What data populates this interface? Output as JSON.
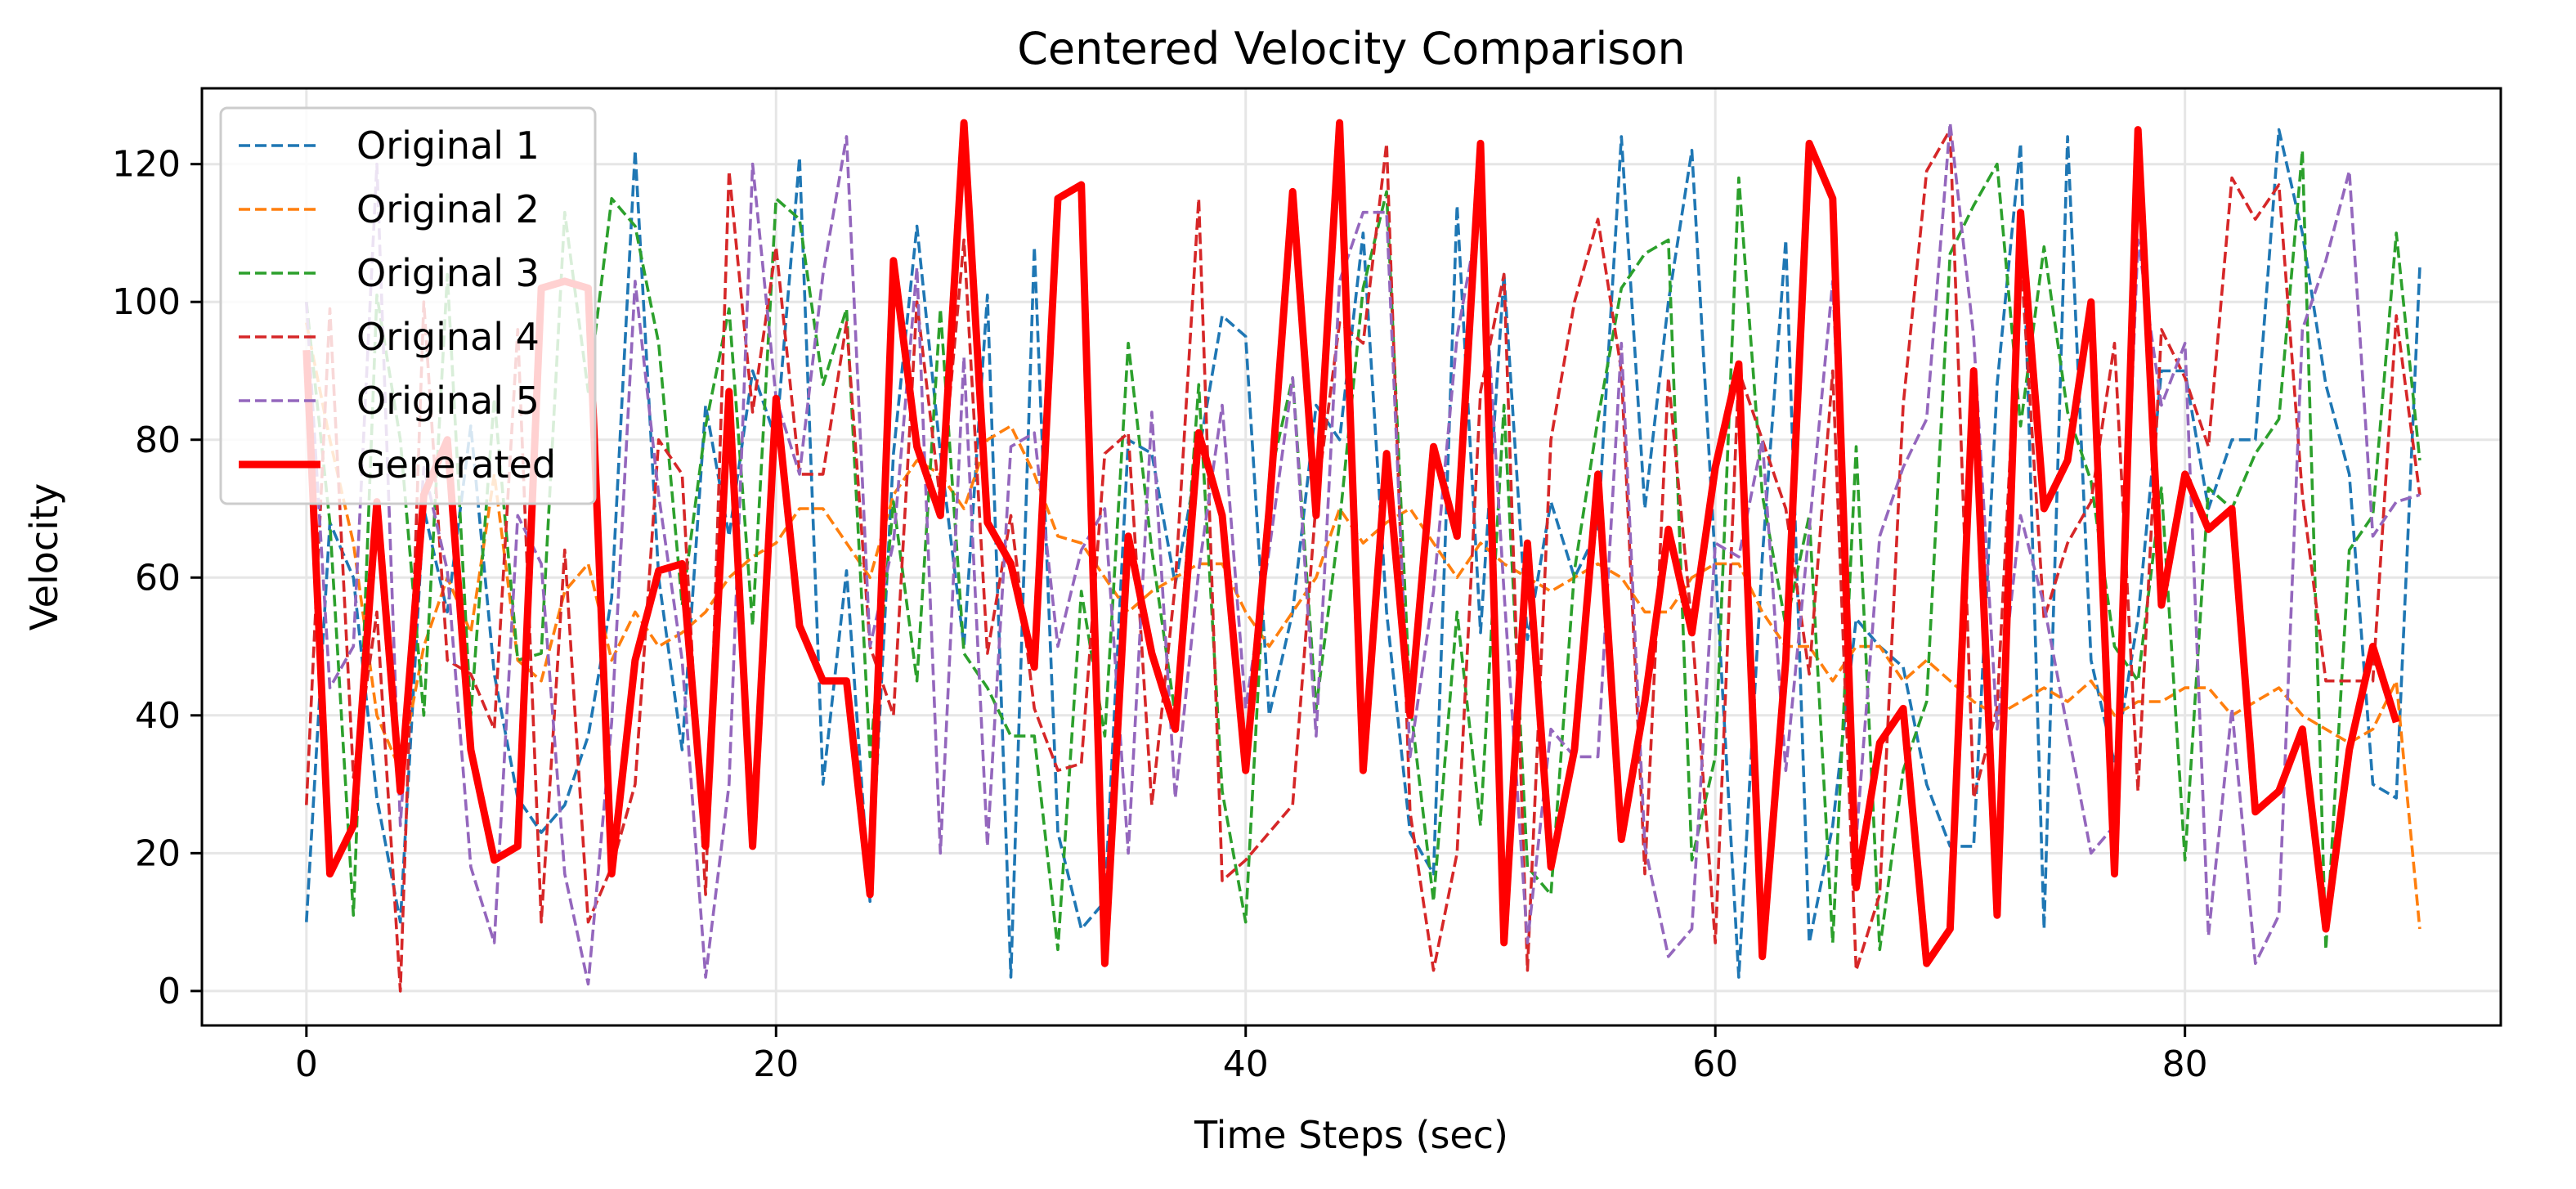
{
  "chart_data": {
    "type": "line",
    "title": "Centered Velocity Comparison",
    "xlabel": "Time Steps (sec)",
    "ylabel": "Velocity",
    "xlim": [
      -4.45,
      93.45
    ],
    "ylim": [
      -5,
      131
    ],
    "xticks": [
      0,
      20,
      40,
      60,
      80
    ],
    "yticks": [
      0,
      20,
      40,
      60,
      80,
      100,
      120
    ],
    "grid": true,
    "legend_position": "top-left",
    "series": [
      {
        "name": "Original 1",
        "color": "#1f77b4",
        "style": "dashed",
        "values": [
          10,
          68,
          60,
          28,
          10,
          70,
          55,
          82,
          46,
          28,
          23,
          27,
          37,
          57,
          122,
          60,
          35,
          85,
          66,
          90,
          80,
          121,
          30,
          61,
          13,
          78,
          111,
          78,
          50,
          101,
          2,
          108,
          23,
          9,
          13,
          80,
          78,
          59,
          78,
          98,
          95,
          40,
          55,
          85,
          80,
          110,
          55,
          23,
          17,
          114,
          52,
          104,
          51,
          71,
          60,
          67,
          124,
          70,
          100,
          122,
          62,
          2,
          63,
          109,
          7,
          24,
          54,
          50,
          47,
          30,
          21,
          21,
          88,
          123,
          9,
          124,
          48,
          33,
          54,
          90,
          90,
          70,
          80,
          80,
          125,
          110,
          88,
          75,
          30,
          28,
          105
        ]
      },
      {
        "name": "Original 2",
        "color": "#ff7f0e",
        "style": "dashed",
        "values": [
          97,
          80,
          65,
          40,
          32,
          50,
          60,
          52,
          75,
          48,
          45,
          58,
          62,
          48,
          55,
          50,
          52,
          55,
          60,
          63,
          65,
          70,
          70,
          65,
          60,
          72,
          77,
          75,
          70,
          80,
          82,
          75,
          66,
          65,
          60,
          55,
          58,
          60,
          62,
          62,
          55,
          50,
          55,
          60,
          70,
          65,
          68,
          70,
          65,
          60,
          65,
          62,
          60,
          58,
          60,
          62,
          60,
          55,
          55,
          60,
          62,
          62,
          55,
          50,
          50,
          45,
          50,
          50,
          45,
          48,
          45,
          42,
          40,
          42,
          44,
          42,
          45,
          40,
          42,
          42,
          44,
          44,
          40,
          42,
          44,
          40,
          38,
          36,
          38,
          45,
          9
        ]
      },
      {
        "name": "Original 3",
        "color": "#2ca02c",
        "style": "dashed",
        "values": [
          100,
          68,
          11,
          101,
          80,
          40,
          104,
          40,
          86,
          48,
          49,
          113,
          87,
          115,
          111,
          94,
          56,
          82,
          99,
          53,
          115,
          112,
          88,
          99,
          34,
          71,
          45,
          99,
          49,
          44,
          37,
          37,
          6,
          58,
          37,
          94,
          64,
          40,
          88,
          29,
          10,
          74,
          89,
          41,
          68,
          102,
          116,
          42,
          13,
          55,
          24,
          85,
          18,
          14,
          61,
          83,
          102,
          107,
          109,
          19,
          34,
          118,
          72,
          53,
          69,
          7,
          79,
          6,
          32,
          42,
          107,
          114,
          120,
          82,
          108,
          84,
          74,
          50,
          45,
          73,
          19,
          73,
          70,
          78,
          83,
          122,
          6,
          64,
          69,
          110,
          77
        ]
      },
      {
        "name": "Original 4",
        "color": "#d62728",
        "style": "dashed",
        "values": [
          27,
          99,
          31,
          55,
          0,
          100,
          48,
          46,
          38,
          96,
          10,
          64,
          10,
          18,
          30,
          80,
          75,
          14,
          119,
          84,
          108,
          75,
          75,
          97,
          50,
          40,
          100,
          71,
          109,
          49,
          69,
          41,
          32,
          33,
          78,
          81,
          27,
          59,
          115,
          16,
          19,
          23,
          27,
          71,
          97,
          94,
          123,
          26,
          3,
          20,
          87,
          104,
          3,
          80,
          100,
          112,
          90,
          17,
          89,
          53,
          7,
          90,
          80,
          70,
          46,
          90,
          3,
          14,
          85,
          119,
          125,
          28,
          41,
          107,
          54,
          65,
          71,
          94,
          29,
          96,
          89,
          79,
          118,
          112,
          117,
          72,
          45,
          45,
          45,
          98,
          72
        ]
      },
      {
        "name": "Original 5",
        "color": "#9467bd",
        "style": "dashed",
        "values": [
          100,
          44,
          50,
          120,
          24,
          76,
          61,
          18,
          7,
          69,
          62,
          17,
          1,
          39,
          103,
          72,
          48,
          2,
          30,
          120,
          86,
          75,
          104,
          124,
          50,
          65,
          105,
          20,
          92,
          21,
          79,
          81,
          50,
          64,
          70,
          20,
          84,
          28,
          61,
          85,
          41,
          64,
          89,
          37,
          103,
          113,
          113,
          34,
          58,
          95,
          114,
          58,
          7,
          38,
          34,
          34,
          94,
          21,
          5,
          9,
          65,
          63,
          80,
          32,
          67,
          103,
          22,
          66,
          76,
          83,
          126,
          95,
          38,
          69,
          56,
          38,
          20,
          24,
          109,
          85,
          94,
          8,
          41,
          4,
          11,
          96,
          106,
          119,
          66,
          71,
          72
        ]
      },
      {
        "name": "Generated",
        "color": "#ff0000",
        "style": "solid",
        "values": [
          93,
          17,
          24,
          71,
          29,
          72,
          80,
          35,
          19,
          21,
          102,
          103,
          102,
          17,
          48,
          61,
          62,
          21,
          87,
          21,
          86,
          53,
          45,
          45,
          14,
          106,
          79,
          69,
          126,
          68,
          62,
          47,
          115,
          117,
          4,
          66,
          49,
          38,
          81,
          69,
          32,
          70,
          116,
          69,
          126,
          32,
          78,
          40,
          79,
          66,
          123,
          7,
          65,
          18,
          35,
          75,
          22,
          42,
          67,
          52,
          76,
          91,
          5,
          48,
          123,
          115,
          15,
          36,
          41,
          4,
          9,
          90,
          11,
          113,
          70,
          77,
          100,
          17,
          125,
          56,
          75,
          67,
          70,
          26,
          29,
          38,
          9,
          35,
          50,
          39
        ]
      }
    ]
  }
}
